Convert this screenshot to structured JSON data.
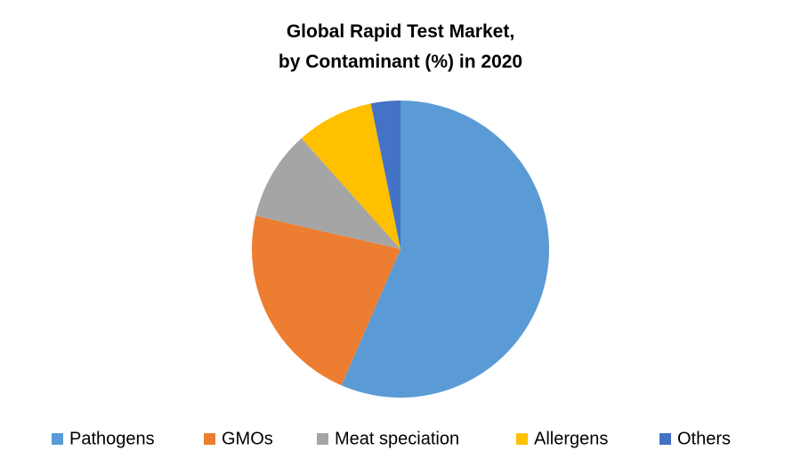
{
  "chart_data": {
    "type": "pie",
    "title": [
      "Global Rapid Test Market,",
      "by Contaminant (%) in 2020"
    ],
    "categories": [
      "Pathogens",
      "GMOs",
      "Meat speciation",
      "Allergens",
      "Others"
    ],
    "values": [
      56.5,
      22.1,
      9.8,
      8.4,
      3.2
    ],
    "colors": [
      "#5b9bd5",
      "#ed7d31",
      "#a5a5a5",
      "#ffc000",
      "#4472c4"
    ],
    "legend": "bottom"
  }
}
